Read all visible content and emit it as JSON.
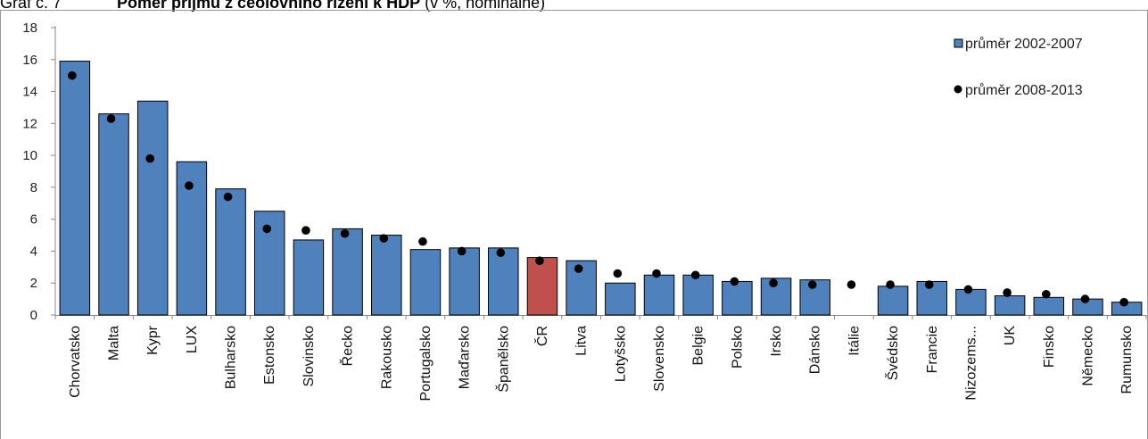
{
  "caption": {
    "number": "Graf č. 7",
    "title": "Poměr příjmů z ceolovního řízení k HDP",
    "unit": "(v %, nominálně)"
  },
  "chart_data": {
    "type": "bar",
    "ylim": [
      0,
      18
    ],
    "yticks": [
      0,
      2,
      4,
      6,
      8,
      10,
      12,
      14,
      16,
      18
    ],
    "grid": false,
    "legend_position": "top-right",
    "categories": [
      "Chorvatsko",
      "Malta",
      "Kypr",
      "LUX",
      "Bulharsko",
      "Estonsko",
      "Slovinsko",
      "Řecko",
      "Rakousko",
      "Portugalsko",
      "Maďarsko",
      "Španělsko",
      "ČR",
      "Litva",
      "Lotyšsko",
      "Slovensko",
      "Belgie",
      "Polsko",
      "Irsko",
      "Dánsko",
      "Itálie",
      "Švédsko",
      "Francie",
      "Nizozems...",
      "UK",
      "Finsko",
      "Německo",
      "Rumunsko"
    ],
    "series": [
      {
        "name": "průměr 2002-2007",
        "kind": "bar",
        "color": "#4f81bd",
        "highlight_color": "#c0504d",
        "highlight_category": "ČR",
        "values": [
          15.9,
          12.6,
          13.4,
          9.6,
          7.9,
          6.5,
          4.7,
          5.4,
          5.0,
          4.1,
          4.2,
          4.2,
          3.6,
          3.4,
          2.0,
          2.5,
          2.5,
          2.1,
          2.3,
          2.2,
          0.0,
          1.8,
          2.1,
          1.6,
          1.2,
          1.1,
          1.0,
          0.8
        ]
      },
      {
        "name": "průměr 2008-2013",
        "kind": "marker",
        "color": "#000000",
        "values": [
          15.0,
          12.3,
          9.8,
          8.1,
          7.4,
          5.4,
          5.3,
          5.1,
          4.8,
          4.6,
          4.0,
          3.9,
          3.4,
          2.9,
          2.6,
          2.6,
          2.5,
          2.1,
          2.0,
          1.9,
          1.9,
          1.9,
          1.9,
          1.6,
          1.4,
          1.3,
          1.0,
          0.8
        ]
      }
    ]
  }
}
